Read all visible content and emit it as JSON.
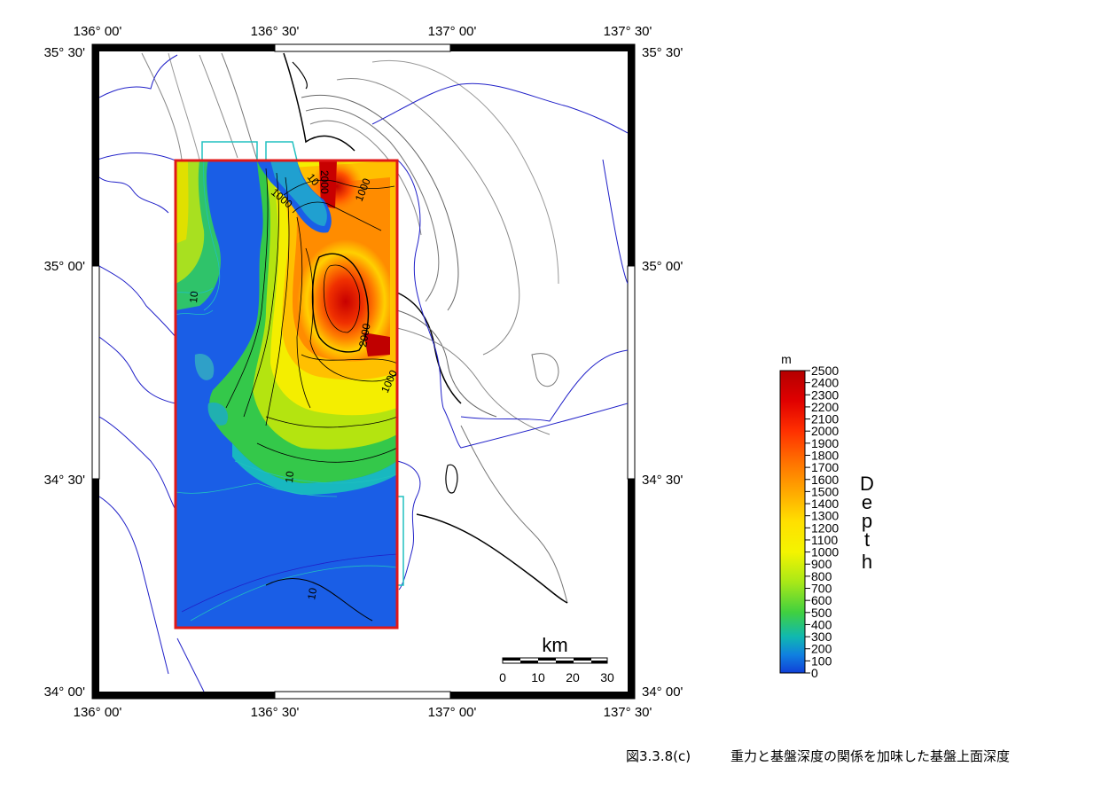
{
  "map": {
    "lon_labels": [
      "136° 00'",
      "136° 30'",
      "137° 00'",
      "137° 30'"
    ],
    "lat_labels": [
      "35° 30'",
      "35° 00'",
      "34° 30'",
      "34° 00'"
    ],
    "contour_labels": [
      "2000",
      "1000",
      "1000",
      "10",
      "2000",
      "1000",
      "10",
      "10",
      "10"
    ]
  },
  "scale_bar": {
    "unit": "km",
    "ticks": [
      "0",
      "10",
      "20",
      "30"
    ]
  },
  "colorbar": {
    "unit": "m",
    "title_letters": [
      "D",
      "e",
      "p",
      "t",
      "h"
    ],
    "labels": [
      "2500",
      "2400",
      "2300",
      "2200",
      "2100",
      "2000",
      "1900",
      "1800",
      "1700",
      "1600",
      "1500",
      "1400",
      "1300",
      "1200",
      "1100",
      "1000",
      "900",
      "800",
      "700",
      "600",
      "500",
      "400",
      "300",
      "200",
      "100",
      "0"
    ],
    "colors": [
      "#b40000",
      "#e00000",
      "#ff3000",
      "#ff6a00",
      "#ffa000",
      "#ffd800",
      "#ffff00",
      "#b8ee10",
      "#50d820",
      "#10c0a0",
      "#1060e8",
      "#1040d8"
    ]
  },
  "caption": {
    "figure_number": "図3.3.8(c)",
    "title": "重力と基盤深度の関係を加味した基盤上面深度"
  }
}
